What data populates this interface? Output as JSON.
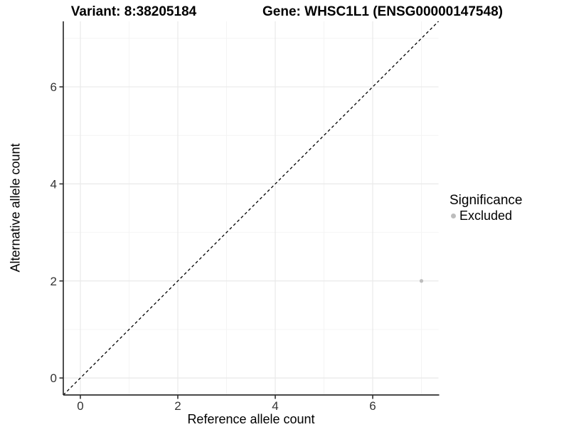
{
  "header": {
    "variant_title": "Variant: 8:38205184",
    "gene_title": "Gene: WHSC1L1 (ENSG00000147548)"
  },
  "legend": {
    "title": "Significance",
    "items": [
      {
        "label": "Excluded",
        "color": "#bdbdbd",
        "marker": "circle"
      }
    ],
    "position": "right"
  },
  "colors": {
    "point": "#bdbdbd",
    "axis_line": "#2f2f2f",
    "tick_text": "#333333",
    "grid_major": "#e9e9e9",
    "grid_minor": "#f4f4f4",
    "reference_line": "#000000",
    "background": "#ffffff"
  },
  "chart_data": {
    "type": "scatter",
    "title": "Variant: 8:38205184 — Gene: WHSC1L1 (ENSG00000147548)",
    "xlabel": "Reference allele count",
    "ylabel": "Alternative allele count",
    "x": {
      "label": "Reference allele count",
      "ticks": [
        0,
        2,
        4,
        6
      ],
      "minor_ticks": [
        1,
        3,
        5,
        7
      ],
      "range": [
        -0.35,
        7.35
      ]
    },
    "y": {
      "label": "Alternative allele count",
      "ticks": [
        0,
        2,
        4,
        6
      ],
      "minor_ticks": [
        1,
        3,
        5,
        7
      ],
      "range": [
        -0.35,
        7.35
      ]
    },
    "grid": true,
    "legend_position": "right",
    "series": [
      {
        "name": "Excluded",
        "color": "#bdbdbd",
        "points": [
          {
            "x": 7,
            "y": 2
          }
        ]
      }
    ],
    "reference_line": {
      "type": "identity",
      "slope": 1,
      "intercept": 0,
      "style": "dashed",
      "color": "#000000"
    }
  }
}
